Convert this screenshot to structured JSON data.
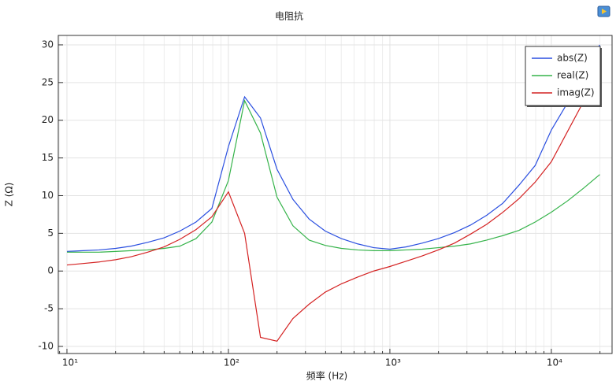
{
  "chart_data": {
    "type": "line",
    "title": "电阻抗",
    "x_label": "频率 (Hz)",
    "y_label": "Z (Ω)",
    "log_x": true,
    "grid": true,
    "legend_position": "upper-right",
    "x": [
      10,
      12.6,
      15.8,
      20,
      25,
      31.6,
      40,
      50,
      63,
      79,
      100,
      126,
      158,
      200,
      251,
      316,
      398,
      501,
      631,
      794,
      1000,
      1259,
      1585,
      1995,
      2512,
      3162,
      3981,
      5012,
      6310,
      7943,
      10000,
      12589,
      15849,
      19953
    ],
    "series": [
      {
        "name": "abs(Z)",
        "color": "#2a4fe0",
        "values": [
          2.6,
          2.7,
          2.8,
          3.0,
          3.3,
          3.8,
          4.4,
          5.3,
          6.5,
          8.3,
          16.5,
          23.1,
          20.3,
          13.5,
          9.5,
          6.9,
          5.3,
          4.3,
          3.6,
          3.1,
          2.9,
          3.2,
          3.7,
          4.3,
          5.1,
          6.1,
          7.4,
          9.0,
          11.4,
          14.0,
          18.7,
          22.3,
          26.2,
          30.0
        ]
      },
      {
        "name": "real(Z)",
        "color": "#35b34a",
        "values": [
          2.5,
          2.5,
          2.5,
          2.6,
          2.7,
          2.8,
          3.0,
          3.3,
          4.3,
          6.5,
          12.0,
          22.6,
          18.3,
          9.8,
          6.0,
          4.1,
          3.4,
          3.0,
          2.8,
          2.7,
          2.7,
          2.8,
          2.9,
          3.1,
          3.3,
          3.6,
          4.1,
          4.7,
          5.4,
          6.5,
          7.8,
          9.3,
          11.0,
          12.8
        ]
      },
      {
        "name": "imag(Z)",
        "color": "#d42222",
        "values": [
          0.8,
          1.0,
          1.2,
          1.5,
          1.9,
          2.5,
          3.2,
          4.2,
          5.5,
          7.2,
          10.5,
          5.0,
          -8.8,
          -9.3,
          -6.3,
          -4.4,
          -2.8,
          -1.7,
          -0.8,
          0.0,
          0.6,
          1.3,
          2.0,
          2.8,
          3.7,
          4.9,
          6.2,
          7.8,
          9.6,
          11.8,
          14.5,
          18.5,
          22.5,
          27.0
        ]
      }
    ],
    "xlim": [
      8.84,
      23770
    ],
    "xticks": [
      {
        "value": 10,
        "label": "10¹"
      },
      {
        "value": 100,
        "label": "10²"
      },
      {
        "value": 1000,
        "label": "10³"
      },
      {
        "value": 10000,
        "label": "10⁴"
      }
    ],
    "ylim": [
      -10.94,
      31.25
    ],
    "yticks": [
      -10,
      -5,
      0,
      5,
      10,
      15,
      20,
      25,
      30
    ]
  }
}
